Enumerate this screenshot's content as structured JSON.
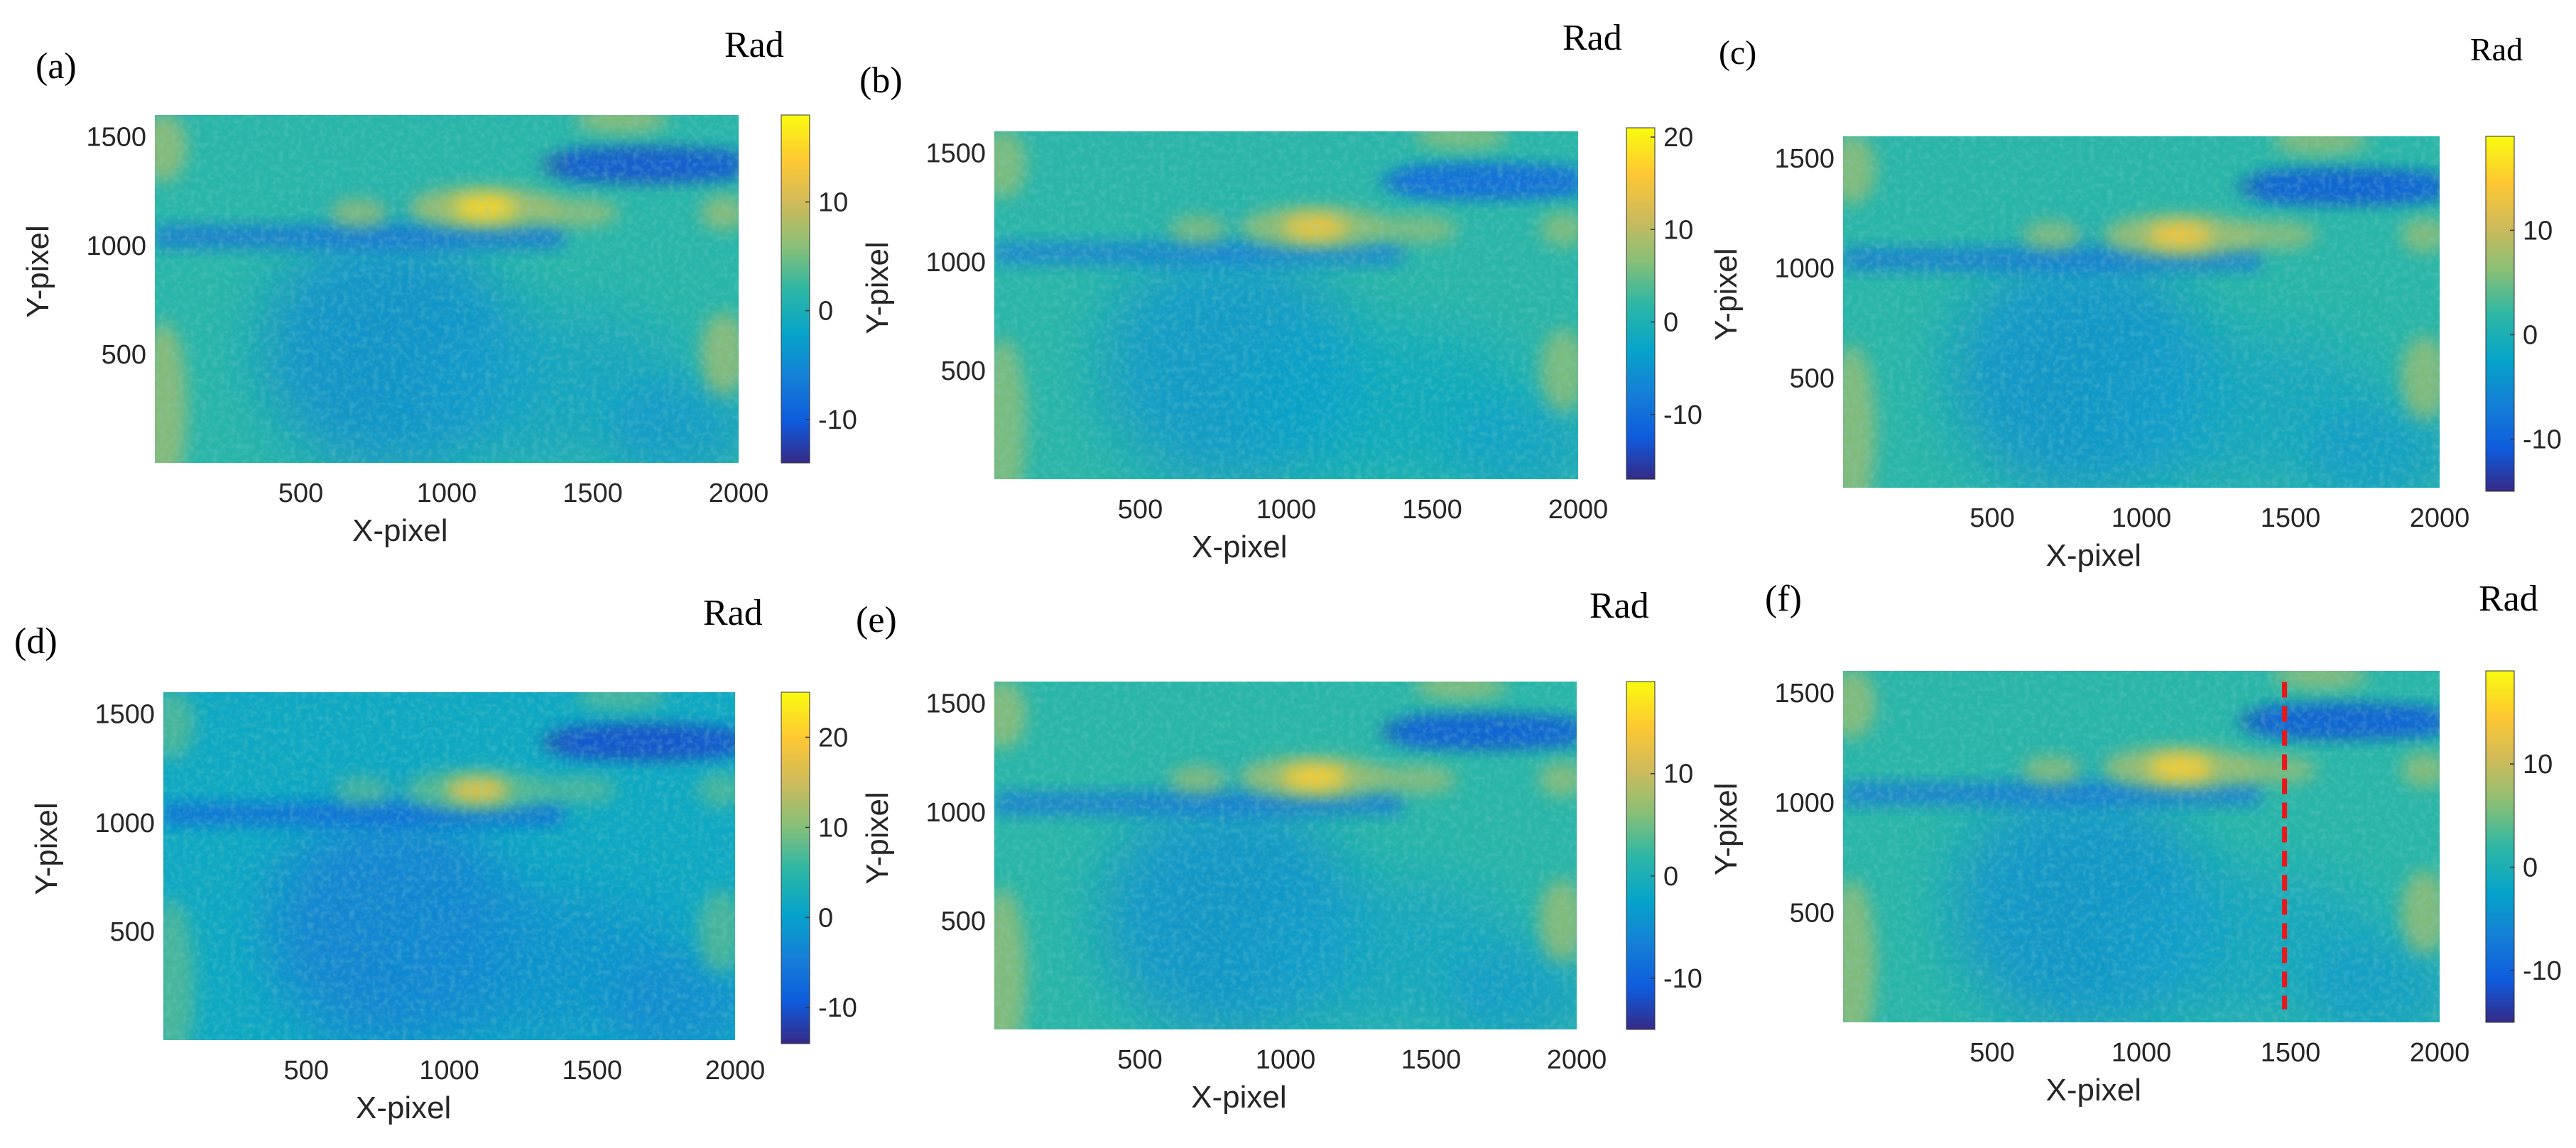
{
  "chart_data": [
    {
      "type": "heatmap",
      "panel_label": "(a)",
      "colorbar_title": "Rad",
      "xlabel": "X-pixel",
      "ylabel": "Y-pixel",
      "xlim": [
        0,
        2000
      ],
      "ylim": [
        0,
        1600
      ],
      "x_ticks": [
        500,
        1000,
        1500,
        2000
      ],
      "y_ticks": [
        500,
        1000,
        1500
      ],
      "clim": [
        -14,
        18
      ],
      "colorbar_ticks": [
        -10,
        0,
        10
      ],
      "features": {
        "hotspot_center": [
          1130,
          1175
        ],
        "hotspot_peak": 15
      }
    },
    {
      "type": "heatmap",
      "panel_label": "(b)",
      "colorbar_title": "Rad",
      "xlabel": "X-pixel",
      "ylabel": "Y-pixel",
      "xlim": [
        0,
        2000
      ],
      "ylim": [
        0,
        1600
      ],
      "x_ticks": [
        500,
        1000,
        1500,
        2000
      ],
      "y_ticks": [
        500,
        1000,
        1500
      ],
      "clim": [
        -17,
        21
      ],
      "colorbar_ticks": [
        -10,
        0,
        10,
        20
      ],
      "features": {
        "hotspot_center": [
          1100,
          1160
        ],
        "hotspot_peak": 15
      }
    },
    {
      "type": "heatmap",
      "panel_label": "(c)",
      "colorbar_title": "Rad",
      "xlabel": "X-pixel",
      "ylabel": "Y-pixel",
      "xlim": [
        0,
        2000
      ],
      "ylim": [
        0,
        1600
      ],
      "x_ticks": [
        500,
        1000,
        1500,
        2000
      ],
      "y_ticks": [
        500,
        1000,
        1500
      ],
      "clim": [
        -15,
        19
      ],
      "colorbar_ticks": [
        -10,
        0,
        10
      ],
      "features": {
        "hotspot_center": [
          1130,
          1150
        ],
        "hotspot_peak": 14
      }
    },
    {
      "type": "heatmap",
      "panel_label": "(d)",
      "colorbar_title": "Rad",
      "xlabel": "X-pixel",
      "ylabel": "Y-pixel",
      "xlim": [
        0,
        2000
      ],
      "ylim": [
        0,
        1600
      ],
      "x_ticks": [
        500,
        1000,
        1500,
        2000
      ],
      "y_ticks": [
        500,
        1000,
        1500
      ],
      "clim": [
        -14,
        25
      ],
      "colorbar_ticks": [
        -10,
        0,
        10,
        20
      ],
      "features": {
        "hotspot_center": [
          1100,
          1150
        ],
        "hotspot_peak": 18
      }
    },
    {
      "type": "heatmap",
      "panel_label": "(e)",
      "colorbar_title": "Rad",
      "xlabel": "X-pixel",
      "ylabel": "Y-pixel",
      "xlim": [
        0,
        2000
      ],
      "ylim": [
        0,
        1600
      ],
      "x_ticks": [
        500,
        1000,
        1500,
        2000
      ],
      "y_ticks": [
        500,
        1000,
        1500
      ],
      "clim": [
        -15,
        19
      ],
      "colorbar_ticks": [
        -10,
        0,
        10
      ],
      "features": {
        "hotspot_center": [
          1100,
          1160
        ],
        "hotspot_peak": 15
      }
    },
    {
      "type": "heatmap",
      "panel_label": "(f)",
      "colorbar_title": "Rad",
      "xlabel": "X-pixel",
      "ylabel": "Y-pixel",
      "xlim": [
        0,
        2000
      ],
      "ylim": [
        0,
        1600
      ],
      "x_ticks": [
        500,
        1000,
        1500,
        2000
      ],
      "y_ticks": [
        500,
        1000,
        1500
      ],
      "clim": [
        -15,
        19
      ],
      "colorbar_ticks": [
        -10,
        0,
        10
      ],
      "features": {
        "hotspot_center": [
          1130,
          1160
        ],
        "hotspot_peak": 15
      },
      "annotation": {
        "type": "vertical-dashed-line",
        "color": "#e8171b",
        "x": 1480,
        "y_range": [
          60,
          1550
        ]
      }
    }
  ]
}
